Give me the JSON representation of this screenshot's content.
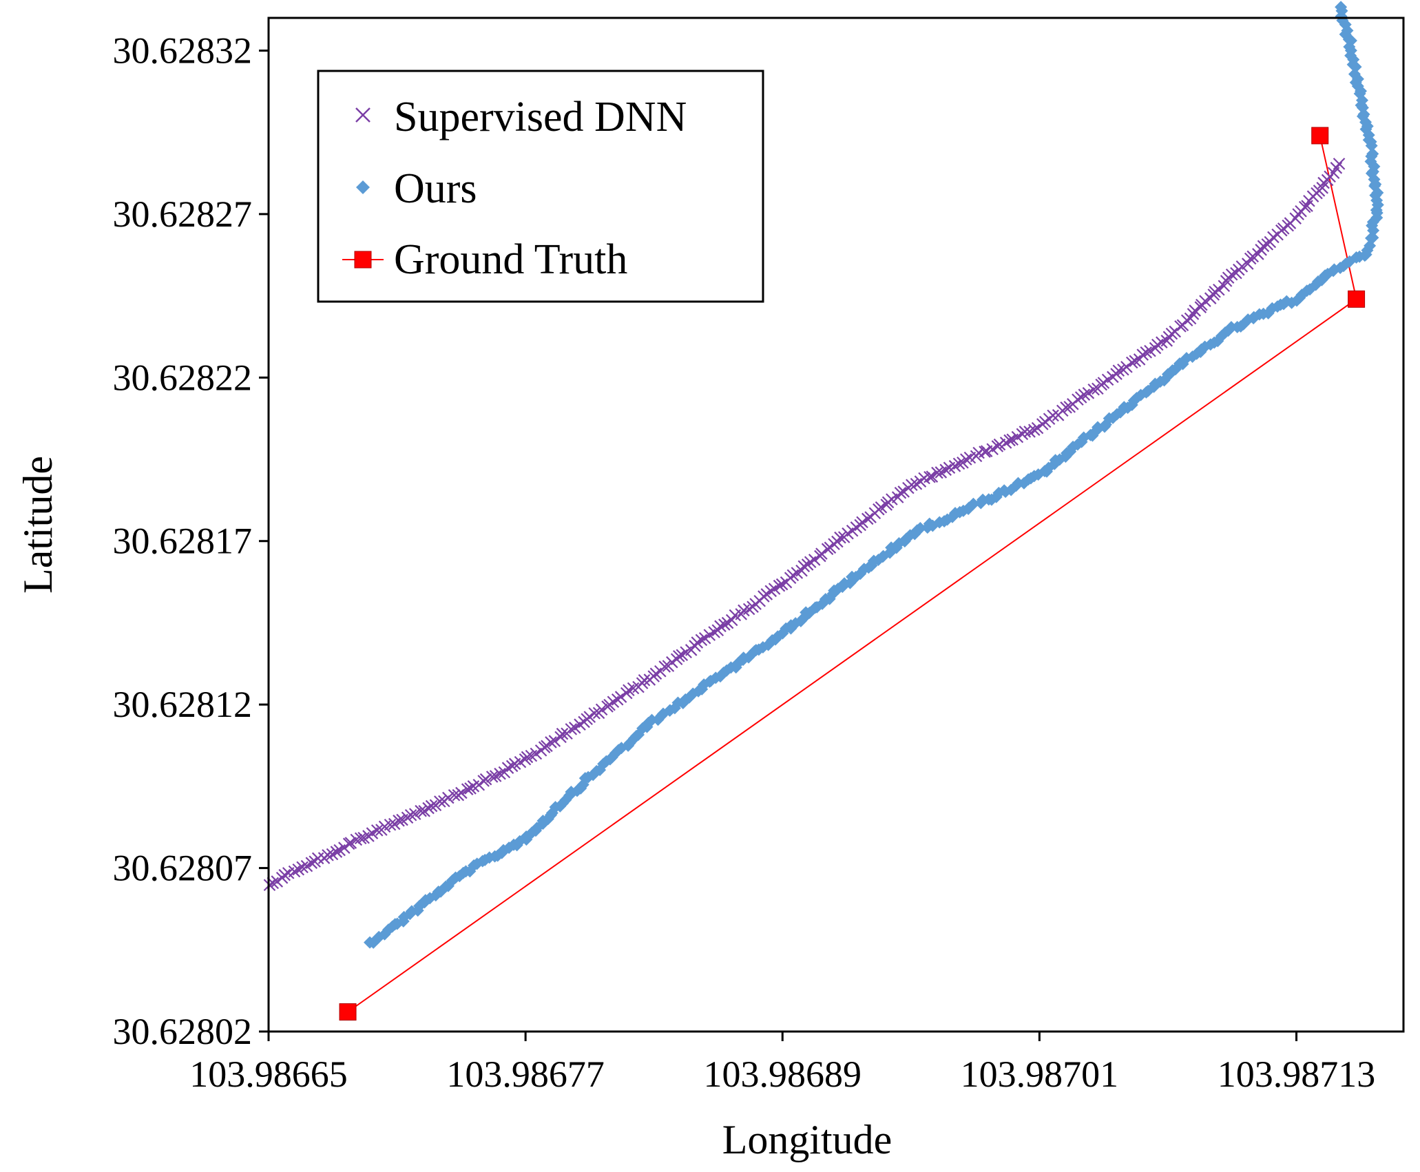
{
  "chart_data": {
    "type": "scatter",
    "title": "",
    "xlabel": "Longitude",
    "ylabel": "Latitude",
    "xlim": [
      103.98665,
      103.98718
    ],
    "ylim": [
      30.62802,
      30.62833
    ],
    "xticks": [
      103.98665,
      103.98677,
      103.98689,
      103.98701,
      103.98713
    ],
    "yticks": [
      30.62802,
      30.62807,
      30.62812,
      30.62817,
      30.62822,
      30.62827,
      30.62832
    ],
    "xtick_labels": [
      "103.98665",
      "103.98677",
      "103.98689",
      "103.98701",
      "103.98713"
    ],
    "ytick_labels": [
      "30.62802",
      "30.62807",
      "30.62812",
      "30.62817",
      "30.62822",
      "30.62827",
      "30.62832"
    ],
    "legend": {
      "position": "top-left",
      "entries": [
        {
          "label": "Supervised DNN",
          "marker": "x",
          "color": "#7b3fa6"
        },
        {
          "label": "Ours",
          "marker": "diamond",
          "color": "#5b9bd5"
        },
        {
          "label": "Ground Truth",
          "marker": "square-line",
          "color": "#ff0000"
        }
      ]
    },
    "series": [
      {
        "name": "Supervised DNN",
        "marker": "x",
        "color": "#7b3fa6",
        "path": [
          [
            103.98665,
            30.628065
          ],
          [
            103.98669,
            30.628078
          ],
          [
            103.98674,
            30.628093
          ],
          [
            103.98677,
            30.628103
          ],
          [
            103.98683,
            30.628129
          ],
          [
            103.98689,
            30.628157
          ],
          [
            103.98695,
            30.628187
          ],
          [
            103.98701,
            30.628205
          ],
          [
            103.98707,
            30.628232
          ],
          [
            103.9871,
            30.628251
          ],
          [
            103.98713,
            30.628269
          ],
          [
            103.98715,
            30.628285
          ]
        ],
        "count": 280,
        "jitter": 4e-07
      },
      {
        "name": "Ours",
        "marker": "diamond",
        "color": "#5b9bd5",
        "path": [
          [
            103.986697,
            30.628047
          ],
          [
            103.98671,
            30.628053
          ],
          [
            103.98674,
            30.628068
          ],
          [
            103.98677,
            30.628079
          ],
          [
            103.9868,
            30.628098
          ],
          [
            103.98683,
            30.628115
          ],
          [
            103.98689,
            30.628142
          ],
          [
            103.98695,
            30.628172
          ],
          [
            103.98701,
            30.62819
          ],
          [
            103.98707,
            30.628221
          ],
          [
            103.9871,
            30.628235
          ],
          [
            103.98713,
            30.628244
          ],
          [
            103.98715,
            30.628254
          ],
          [
            103.987163,
            30.628258
          ],
          [
            103.987168,
            30.628272
          ],
          [
            103.987165,
            30.628288
          ],
          [
            103.98716,
            30.628305
          ],
          [
            103.987155,
            30.628322
          ],
          [
            103.98715,
            30.628333
          ]
        ],
        "count": 330,
        "jitter": 6e-07
      },
      {
        "name": "Ground Truth",
        "marker": "square-line",
        "color": "#ff0000",
        "points": [
          [
            103.986687,
            30.628026
          ],
          [
            103.987158,
            30.628244
          ],
          [
            103.987141,
            30.628294
          ]
        ]
      }
    ]
  }
}
